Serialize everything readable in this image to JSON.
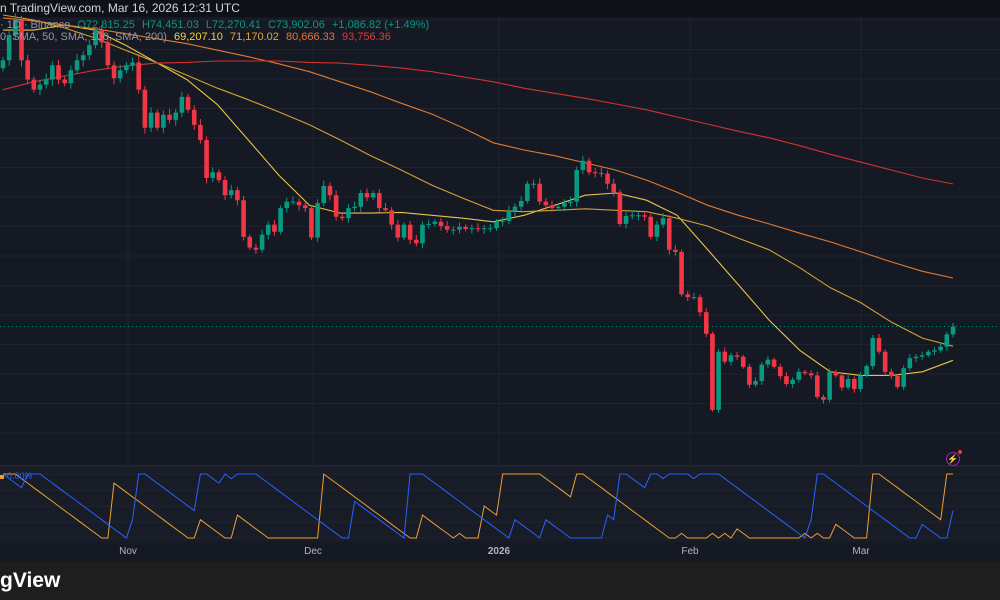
{
  "topbar": {
    "text": "n TradingView.com, Mar 16, 2026 12:31 UTC"
  },
  "legend": {
    "symbol_tail": "· 1D · Binance",
    "open": "O72,815.25",
    "high": "H74,451.03",
    "low": "L72,270.41",
    "close": "C73,902.06",
    "change": "+1,086.82 (+1.49%)",
    "sma_params": "0, SMA, 50, SMA, 100, SMA, 200)",
    "sma_values": [
      "69,207.10",
      "71,170.02",
      "80,666.33",
      "93,756.36"
    ]
  },
  "colors": {
    "background": "#151924",
    "up": "#089981",
    "down": "#f23645",
    "sma20": "#e8c547",
    "sma50": "#d4a032",
    "sma100": "#e07b2e",
    "sma200": "#d3312f",
    "aroon_up": "#f0a030",
    "aroon_down": "#2962ff"
  },
  "indicator": {
    "down_value": "0.00%"
  },
  "footer": {
    "logo_text": "gView"
  },
  "icons": {
    "alert": "lightning-bolt-icon"
  },
  "chart_data": {
    "type": "candlestick",
    "interval": "1D",
    "exchange": "Binance",
    "x_tick_labels": [
      "Nov",
      "Dec",
      "2026",
      "Feb",
      "Mar"
    ],
    "last_price": 73902.06,
    "closes": [
      111000,
      114500,
      116600,
      111000,
      108300,
      106900,
      107600,
      108300,
      110300,
      108300,
      107800,
      109600,
      111000,
      111700,
      113100,
      115200,
      113500,
      110300,
      108500,
      109600,
      110300,
      110700,
      106900,
      101600,
      103700,
      101600,
      103400,
      102700,
      103700,
      105900,
      104100,
      102000,
      99900,
      94600,
      95400,
      94300,
      92200,
      92900,
      91500,
      86400,
      84900,
      84600,
      86700,
      88100,
      87100,
      90400,
      91300,
      91300,
      90800,
      90400,
      86300,
      91100,
      93500,
      92200,
      89200,
      89000,
      90400,
      90600,
      92500,
      91900,
      92500,
      90400,
      90100,
      88100,
      86300,
      88100,
      86000,
      85500,
      88100,
      88200,
      88500,
      87900,
      87400,
      87400,
      87800,
      87500,
      87600,
      87500,
      87600,
      87600,
      88500,
      88600,
      90000,
      90600,
      91400,
      93800,
      93800,
      91300,
      90800,
      90400,
      90600,
      91100,
      91300,
      95700,
      97000,
      95400,
      95300,
      95200,
      93800,
      92600,
      88200,
      89300,
      89400,
      89400,
      89200,
      86400,
      88100,
      89000,
      84600,
      84300,
      78400,
      78000,
      78000,
      75900,
      72900,
      62300,
      70400,
      69000,
      69900,
      69700,
      68300,
      65800,
      66300,
      68600,
      69300,
      68300,
      67000,
      65900,
      66500,
      67600,
      67400,
      67100,
      64100,
      63700,
      67600,
      67100,
      65400,
      66600,
      65200,
      67100,
      68400,
      72300,
      70400,
      67600,
      67000,
      65500,
      68100,
      69500,
      69700,
      69900,
      70400,
      70600,
      71100,
      72815,
      73902
    ],
    "series": [
      {
        "name": "SMA 20",
        "values": [
          115200,
          115200,
          115900,
          115200,
          113100,
          110700,
          108300,
          104800,
          99900,
          95000,
          90800,
          89700,
          89700,
          89800,
          89400,
          89000,
          88500,
          89400,
          90800,
          92200,
          92500,
          91500,
          89400,
          84600,
          79700,
          74800,
          70600,
          67600,
          67100,
          67100,
          67600,
          69207
        ]
      },
      {
        "name": "SMA 50",
        "values": [
          117300,
          116600,
          115500,
          114100,
          112400,
          110700,
          108900,
          107100,
          105500,
          103800,
          102000,
          99900,
          97700,
          95700,
          93600,
          91800,
          90100,
          89900,
          90100,
          90300,
          90100,
          89900,
          89000,
          87900,
          86200,
          84600,
          82100,
          79300,
          77200,
          74500,
          72300,
          71170
        ]
      },
      {
        "name": "SMA 100",
        "values": [
          116900,
          116500,
          115900,
          115400,
          114700,
          114000,
          113300,
          112400,
          111500,
          110500,
          109400,
          108000,
          106600,
          105000,
          103500,
          101600,
          99500,
          98500,
          97700,
          96700,
          95700,
          94300,
          92600,
          90800,
          89400,
          88200,
          86900,
          85700,
          84300,
          82900,
          81600,
          80666
        ]
      },
      {
        "name": "SMA 200",
        "values": [
          106900,
          108000,
          108800,
          109600,
          110200,
          110600,
          110700,
          110900,
          110900,
          110900,
          110700,
          110600,
          110300,
          109900,
          109400,
          108700,
          108000,
          107100,
          106400,
          105700,
          104900,
          104100,
          103100,
          102100,
          101100,
          100200,
          99100,
          97900,
          96800,
          95700,
          94600,
          93756
        ]
      }
    ],
    "indicator": {
      "name": "Aroon",
      "length": 14,
      "ylim": [
        0,
        100
      ]
    }
  }
}
